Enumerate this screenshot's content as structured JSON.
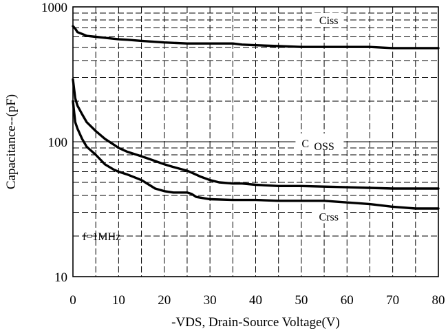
{
  "chart_data": {
    "type": "line",
    "title": "",
    "xlabel": "-VDS, Drain-Source Voltage(V)",
    "ylabel": "Capacitance--(pF)",
    "xlim": [
      0,
      80
    ],
    "ylim": [
      10,
      1000
    ],
    "yscale": "log",
    "grid": true,
    "x_ticks": [
      0,
      10,
      20,
      30,
      40,
      50,
      60,
      70,
      80
    ],
    "x_tick_labels": [
      "0",
      "10",
      "20",
      "30",
      "40",
      "50",
      "60",
      "70",
      "80"
    ],
    "y_ticks": [
      10,
      100,
      1000
    ],
    "y_tick_labels": [
      "10",
      "100",
      "1000"
    ],
    "annotation": "f=1MHz",
    "series": [
      {
        "name": "Ciss",
        "label_at": [
          56,
          800
        ],
        "points": [
          [
            0,
            720
          ],
          [
            0.5,
            690
          ],
          [
            1,
            650
          ],
          [
            2,
            630
          ],
          [
            3,
            610
          ],
          [
            5,
            600
          ],
          [
            7,
            590
          ],
          [
            10,
            575
          ],
          [
            12,
            570
          ],
          [
            15,
            560
          ],
          [
            20,
            545
          ],
          [
            25,
            535
          ],
          [
            30,
            535
          ],
          [
            35,
            535
          ],
          [
            37,
            525
          ],
          [
            40,
            520
          ],
          [
            45,
            512
          ],
          [
            50,
            505
          ],
          [
            55,
            505
          ],
          [
            60,
            505
          ],
          [
            65,
            505
          ],
          [
            70,
            495
          ],
          [
            75,
            495
          ],
          [
            80,
            495
          ]
        ]
      },
      {
        "name": "Coss",
        "label_at": [
          54,
          100
        ],
        "points": [
          [
            0,
            290
          ],
          [
            0.5,
            210
          ],
          [
            1,
            185
          ],
          [
            2,
            160
          ],
          [
            3,
            140
          ],
          [
            5,
            120
          ],
          [
            7,
            105
          ],
          [
            9,
            95
          ],
          [
            10,
            90
          ],
          [
            12,
            84
          ],
          [
            15,
            78
          ],
          [
            18,
            72
          ],
          [
            20,
            68
          ],
          [
            22,
            65
          ],
          [
            25,
            61
          ],
          [
            26,
            59
          ],
          [
            28,
            55
          ],
          [
            30,
            52
          ],
          [
            32,
            50
          ],
          [
            35,
            49
          ],
          [
            37,
            49
          ],
          [
            40,
            48
          ],
          [
            45,
            47
          ],
          [
            50,
            47
          ],
          [
            55,
            46.5
          ],
          [
            60,
            46
          ],
          [
            65,
            45.5
          ],
          [
            70,
            45
          ],
          [
            75,
            45
          ],
          [
            80,
            45
          ]
        ]
      },
      {
        "name": "Crss",
        "label_at": [
          56,
          28
        ],
        "points": [
          [
            0,
            200
          ],
          [
            0.5,
            140
          ],
          [
            1,
            125
          ],
          [
            2,
            105
          ],
          [
            3,
            92
          ],
          [
            5,
            80
          ],
          [
            7,
            68
          ],
          [
            9,
            62
          ],
          [
            10,
            60
          ],
          [
            12,
            57
          ],
          [
            15,
            52
          ],
          [
            18,
            45
          ],
          [
            20,
            43
          ],
          [
            22,
            42
          ],
          [
            25,
            42
          ],
          [
            26,
            41
          ],
          [
            27,
            39
          ],
          [
            29,
            38
          ],
          [
            30,
            37.5
          ],
          [
            35,
            37
          ],
          [
            40,
            37
          ],
          [
            45,
            36.5
          ],
          [
            50,
            36.5
          ],
          [
            55,
            36.5
          ],
          [
            60,
            35.5
          ],
          [
            65,
            34.5
          ],
          [
            70,
            33
          ],
          [
            75,
            32
          ],
          [
            80,
            32
          ]
        ]
      }
    ]
  }
}
